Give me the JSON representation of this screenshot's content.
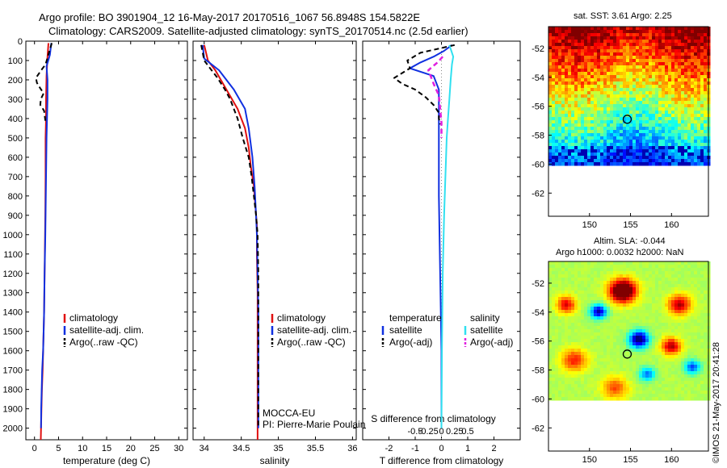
{
  "header": {
    "line1": "Argo profile: BO 3901904_12  16-May-2017 20170516_1067 56.8948S 154.5822E",
    "line2": "Climatology: CARS2009. Satellite-adjusted climatology: synTS_20170514.nc (2.5d earlier)"
  },
  "footer": {
    "stamp": "©IMOS 21-May-2017 20:41:28"
  },
  "colors": {
    "red": "#e01010",
    "blue": "#1030e0",
    "black": "#000000",
    "cyan": "#30e0f0",
    "magenta": "#e020e0"
  },
  "depth_axis": {
    "ticks": [
      0,
      100,
      200,
      300,
      400,
      500,
      600,
      700,
      800,
      900,
      1000,
      1100,
      1200,
      1300,
      1400,
      1500,
      1600,
      1700,
      1800,
      1900,
      2000
    ],
    "range": [
      0,
      2060
    ]
  },
  "chart_data": [
    {
      "id": "temperature",
      "type": "line",
      "xlabel": "temperature (deg C)",
      "xticks": [
        0,
        5,
        10,
        15,
        20,
        25,
        30
      ],
      "xlim": [
        -1.8,
        31.8
      ],
      "ylim": [
        0,
        2060
      ],
      "legend": [
        "climatology",
        "satellite-adj. clim.",
        "Argo(..raw -QC)"
      ],
      "series": [
        {
          "name": "climatology",
          "color": "red",
          "dash": "",
          "width": 2,
          "x": [
            2.9,
            2.7,
            2.5,
            2.4,
            2.4,
            2.3,
            2.3,
            2.25,
            2.2,
            2.1,
            2.0,
            1.9,
            1.8,
            1.7,
            1.55,
            1.45,
            1.35,
            1.3
          ],
          "y": [
            10,
            80,
            180,
            300,
            400,
            500,
            700,
            900,
            1000,
            1200,
            1400,
            1500,
            1600,
            1700,
            1800,
            1900,
            2000,
            2060
          ]
        },
        {
          "name": "satellite-adj. clim.",
          "color": "blue",
          "dash": "",
          "width": 2,
          "x": [
            3.5,
            3.2,
            2.5,
            2.7,
            2.7,
            2.5,
            2.4,
            2.3,
            2.25,
            2.1,
            2.0,
            1.9,
            1.8,
            1.6,
            1.5,
            1.4,
            1.35
          ],
          "y": [
            10,
            70,
            130,
            200,
            300,
            500,
            700,
            900,
            1000,
            1200,
            1400,
            1500,
            1600,
            1700,
            1800,
            1900,
            2000
          ]
        },
        {
          "name": "Argo(..raw -QC)",
          "color": "black",
          "dash": "6,4",
          "width": 2,
          "x": [
            3.6,
            3.0,
            2.3,
            1.4,
            0.3,
            0.5,
            1.1,
            1.9,
            1.3,
            1.2,
            2.0,
            2.2,
            2.3
          ],
          "y": [
            10,
            60,
            120,
            150,
            190,
            215,
            240,
            270,
            300,
            330,
            360,
            400,
            420
          ]
        }
      ]
    },
    {
      "id": "salinity",
      "type": "line",
      "xlabel": "salinity",
      "xticks": [
        34,
        34.5,
        35,
        35.5,
        36
      ],
      "xlim": [
        33.85,
        36.05
      ],
      "ylim": [
        0,
        2060
      ],
      "legend": [
        "climatology",
        "satellite-adj. clim.",
        "Argo(..raw -QC)"
      ],
      "annotations": [
        "MOCCA-EU",
        "PI: Pierre-Marie Poulain"
      ],
      "series": [
        {
          "name": "climatology",
          "color": "red",
          "dash": "",
          "width": 2,
          "x": [
            34.0,
            34.05,
            34.15,
            34.3,
            34.45,
            34.55,
            34.6,
            34.63,
            34.67,
            34.69,
            34.71,
            34.71,
            34.72,
            34.72,
            34.72,
            34.72,
            34.72
          ],
          "y": [
            20,
            100,
            150,
            250,
            350,
            450,
            550,
            650,
            750,
            850,
            950,
            1100,
            1300,
            1500,
            1700,
            1900,
            2060
          ]
        },
        {
          "name": "satellite-adj. clim.",
          "color": "blue",
          "dash": "",
          "width": 2,
          "x": [
            33.98,
            34.0,
            34.2,
            34.4,
            34.55,
            34.6,
            34.65,
            34.68,
            34.7,
            34.71,
            34.72,
            34.73,
            34.73,
            34.73,
            34.73
          ],
          "y": [
            20,
            90,
            150,
            250,
            350,
            450,
            600,
            750,
            900,
            1000,
            1200,
            1400,
            1600,
            1800,
            2000
          ]
        },
        {
          "name": "Argo(..raw -QC)",
          "color": "black",
          "dash": "6,4",
          "width": 2,
          "x": [
            33.96,
            34.0,
            34.08,
            34.18,
            34.28,
            34.35,
            34.45,
            34.52,
            34.6,
            34.64,
            34.67,
            34.7,
            34.72,
            34.73,
            34.73,
            34.73
          ],
          "y": [
            20,
            100,
            140,
            190,
            250,
            300,
            400,
            500,
            600,
            700,
            800,
            900,
            1000,
            1200,
            1600,
            2000
          ]
        }
      ]
    },
    {
      "id": "difference",
      "type": "line",
      "xlabel": "T difference from climatology",
      "x2label": "S difference from climatology",
      "xticks": [
        -2,
        -1,
        0,
        1,
        2
      ],
      "xticklabels": [
        "-2",
        "-1",
        "0",
        "1",
        "2"
      ],
      "x2ticks": [
        -0.5,
        -0.25,
        0,
        0.25,
        0.5
      ],
      "x2ticklabels": [
        "-0.5",
        "-0.25",
        "0",
        "0.25",
        "0.5"
      ],
      "xlim": [
        -3.0,
        3.0
      ],
      "ylim": [
        0,
        2060
      ],
      "legend_left": {
        "title": "temperature",
        "items": [
          "satellite",
          "Argo(-adj)"
        ]
      },
      "legend_right": {
        "title": "salinity",
        "items": [
          "satellite",
          "Argo(-adj)"
        ]
      },
      "series": [
        {
          "name": "satellite (T)",
          "color": "blue",
          "dash": "",
          "width": 2,
          "x": [
            0.4,
            0.1,
            -0.3,
            -0.8,
            -1.2,
            -0.3,
            -0.1,
            -0.1,
            -0.1,
            -0.1,
            -0.05,
            0.0,
            0.0
          ],
          "y": [
            20,
            50,
            80,
            110,
            140,
            180,
            250,
            350,
            500,
            800,
            1200,
            1600,
            2000
          ]
        },
        {
          "name": "Argo(-adj) (T)",
          "color": "black",
          "dash": "6,4",
          "width": 2,
          "x": [
            0.5,
            -0.8,
            -1.3,
            -1.2,
            -1.8,
            -1.5,
            -1.0,
            -0.6,
            -0.3,
            -0.1,
            -0.1,
            -0.05
          ],
          "y": [
            20,
            60,
            100,
            140,
            190,
            220,
            250,
            290,
            330,
            370,
            400,
            430
          ]
        },
        {
          "name": "satellite (S)",
          "color": "cyan",
          "dash": "",
          "width": 2,
          "x": [
            0.3,
            0.45,
            0.4,
            0.35,
            0.3,
            0.25,
            0.2,
            0.15,
            0.1,
            0.05,
            0.02,
            0.0
          ],
          "y": [
            20,
            80,
            120,
            200,
            300,
            400,
            500,
            700,
            900,
            1200,
            1600,
            2000
          ]
        },
        {
          "name": "Argo(-adj) (S)",
          "color": "magenta",
          "dash": "6,4",
          "width": 2.5,
          "x": [
            0.05,
            -0.15,
            -0.5,
            -0.3,
            -0.1,
            -0.05,
            0.0,
            0.0
          ],
          "y": [
            80,
            110,
            150,
            220,
            280,
            350,
            420,
            500
          ]
        }
      ]
    }
  ],
  "maps": {
    "sst": {
      "title": "sat. SST: 3.61  Argo: 2.25",
      "lat_ticks": [
        -52,
        -54,
        -56,
        -58,
        -60,
        -62
      ],
      "lon_ticks": [
        150,
        155,
        160
      ],
      "lat_range": [
        -63.6,
        -50.5
      ],
      "lon_range": [
        145.0,
        164.5
      ],
      "float_lat": -56.9,
      "float_lon": 154.6
    },
    "sla": {
      "title_line1": "Altim. SLA: -0.044",
      "title_line2": "Argo h1000: 0.0032 h2000: NaN",
      "lat_ticks": [
        -52,
        -54,
        -56,
        -58,
        -60,
        -62
      ],
      "lon_ticks": [
        150,
        155,
        160
      ],
      "lat_range": [
        -63.6,
        -50.5
      ],
      "lon_range": [
        145.0,
        164.5
      ],
      "float_lat": -56.9,
      "float_lon": 154.6
    }
  }
}
